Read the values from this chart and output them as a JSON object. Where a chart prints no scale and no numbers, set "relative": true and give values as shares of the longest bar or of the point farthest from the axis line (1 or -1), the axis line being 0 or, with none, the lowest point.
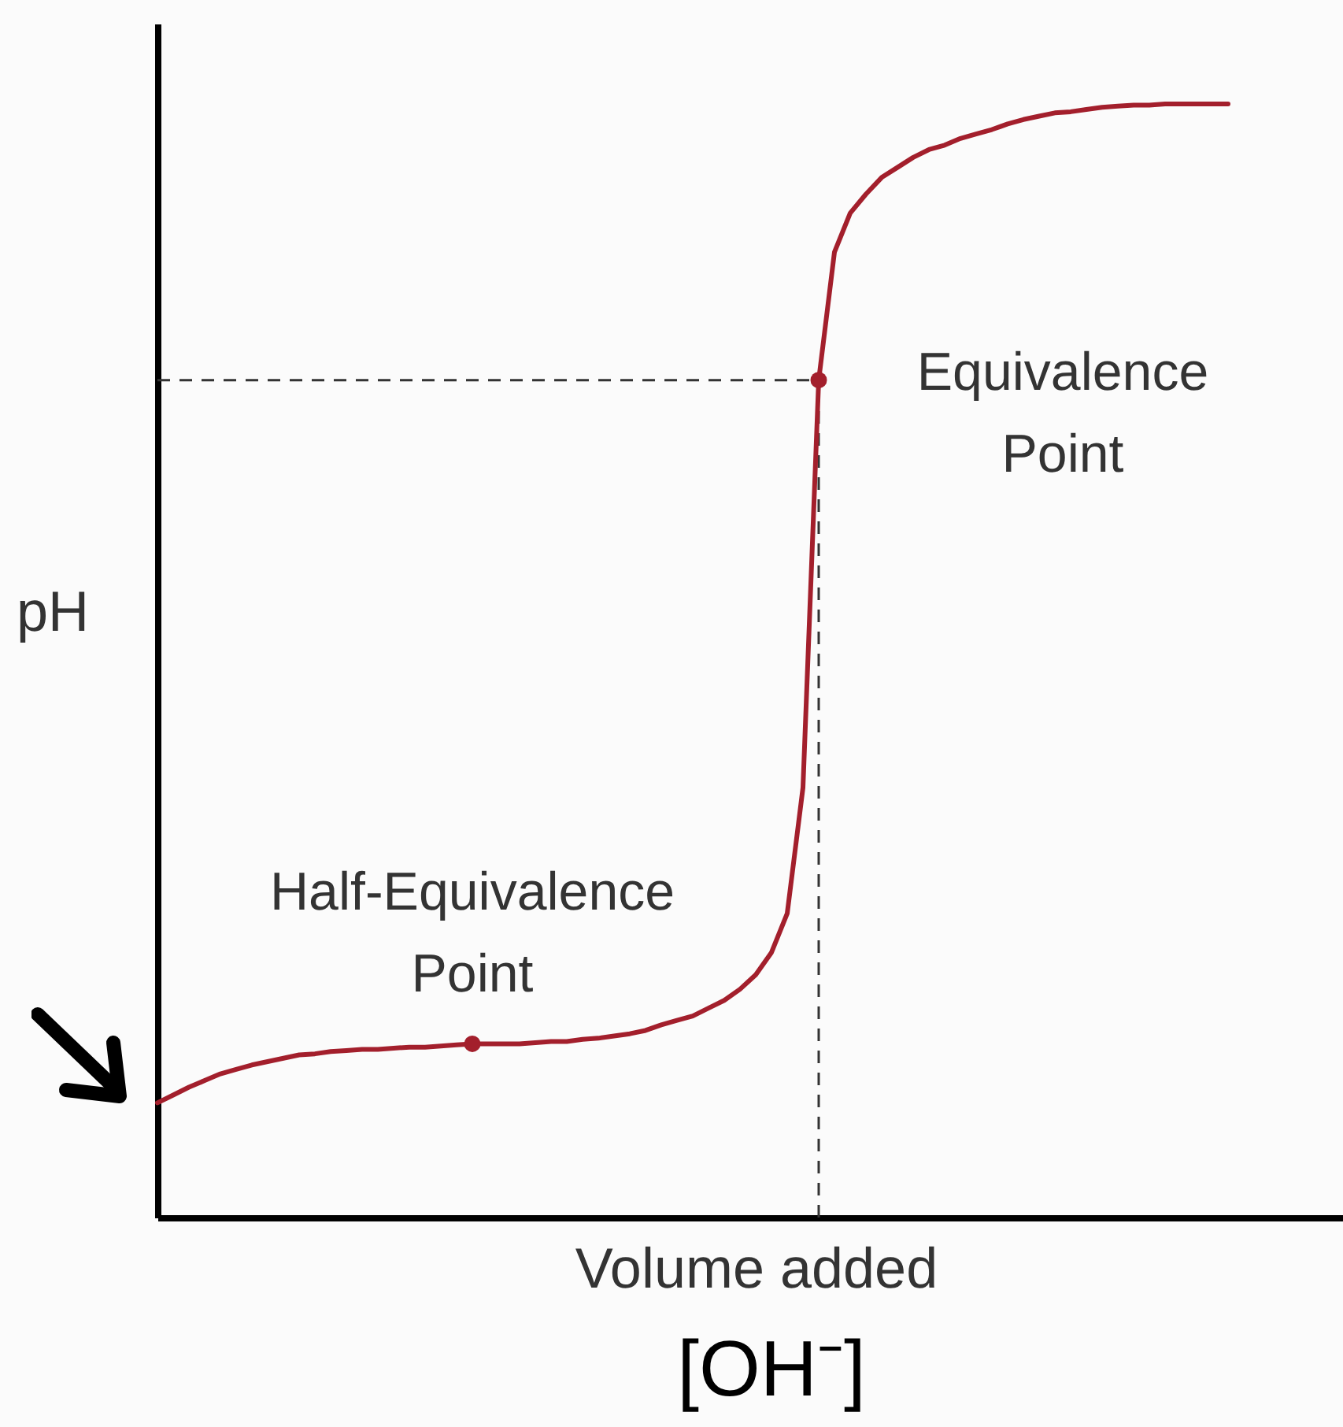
{
  "chart_data": {
    "type": "line",
    "relative": true,
    "xlabel": "Volume added",
    "ylabel": "pH",
    "categories": [
      null,
      null,
      null,
      null,
      null,
      null,
      null,
      null,
      null,
      null,
      null,
      null,
      null,
      null,
      null,
      null,
      null,
      null,
      null,
      null,
      null,
      null,
      null,
      null,
      null,
      null,
      null,
      null,
      null,
      null,
      null,
      null,
      null,
      null,
      null,
      null,
      null,
      null,
      null,
      null,
      null,
      null,
      null,
      null,
      null,
      null,
      null,
      null,
      null,
      null,
      null,
      null,
      null,
      null,
      null,
      null,
      null,
      null,
      null,
      null,
      null,
      null,
      null,
      null,
      null,
      null,
      null,
      null,
      null
    ],
    "series": [
      {
        "color": "#a31f2c",
        "values": [
          0.103,
          0.11,
          0.117,
          0.123,
          0.129,
          0.133,
          0.137,
          0.14,
          0.143,
          0.146,
          0.147,
          0.149,
          0.15,
          0.151,
          0.151,
          0.152,
          0.153,
          0.153,
          0.154,
          0.155,
          0.156,
          0.156,
          0.156,
          0.156,
          0.157,
          0.158,
          0.158,
          0.16,
          0.161,
          0.163,
          0.165,
          0.168,
          0.173,
          0.177,
          0.181,
          0.188,
          0.195,
          0.205,
          0.218,
          0.238,
          0.273,
          0.386,
          0.752,
          0.867,
          0.902,
          0.919,
          0.934,
          0.943,
          0.952,
          0.959,
          0.963,
          0.969,
          0.973,
          0.977,
          0.982,
          0.986,
          0.989,
          0.992,
          0.993,
          0.995,
          0.997,
          0.998,
          0.999,
          0.999,
          1.0,
          1.0,
          1.0,
          1.0,
          1.0
        ]
      }
    ],
    "ref_lines": [
      {
        "axis": "y",
        "value": 0.752,
        "line_style": "dashed",
        "color": "#333333"
      }
    ],
    "annotations": [
      {
        "text": "Half-Equivalence Point",
        "y": 0.156
      },
      "Equivalence Point",
      "[OH⁻]"
    ]
  }
}
